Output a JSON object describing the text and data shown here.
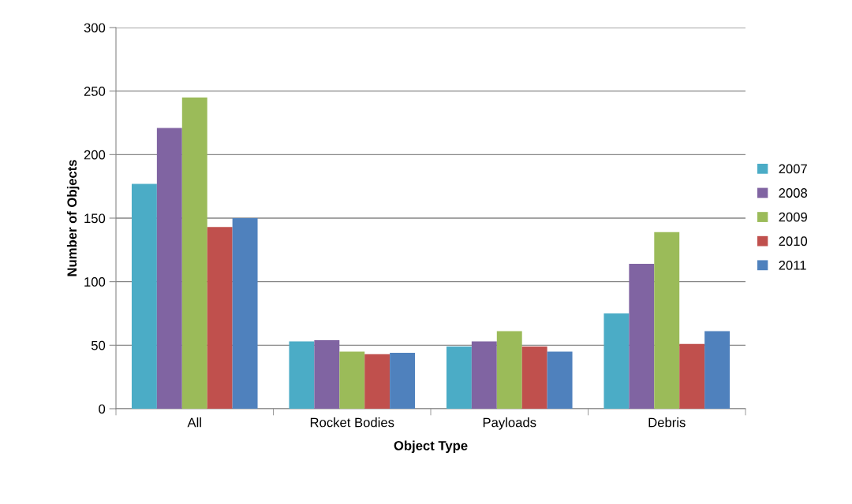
{
  "chart_data": {
    "type": "bar",
    "xlabel": "Object Type",
    "ylabel": "Number of Objects",
    "categories": [
      "All",
      "Rocket Bodies",
      "Payloads",
      "Debris"
    ],
    "series": [
      {
        "name": "2007",
        "color": "#4bacc6",
        "values": [
          177,
          53,
          49,
          75
        ]
      },
      {
        "name": "2008",
        "color": "#8064a2",
        "values": [
          221,
          54,
          53,
          114
        ]
      },
      {
        "name": "2009",
        "color": "#9bbb59",
        "values": [
          245,
          45,
          61,
          139
        ]
      },
      {
        "name": "2010",
        "color": "#c0504d",
        "values": [
          143,
          43,
          49,
          51
        ]
      },
      {
        "name": "2011",
        "color": "#4f81bd",
        "values": [
          150,
          44,
          45,
          61
        ]
      }
    ],
    "ylim": [
      0,
      300
    ],
    "yticks": [
      0,
      50,
      100,
      150,
      200,
      250,
      300
    ],
    "grid": "y",
    "legend": "right"
  }
}
